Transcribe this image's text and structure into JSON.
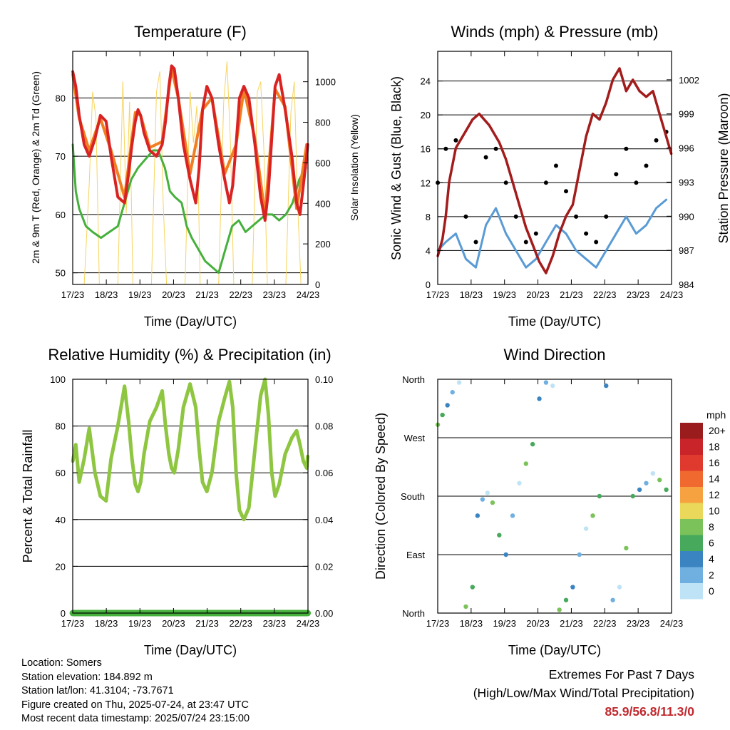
{
  "colors": {
    "temp_2m": "#d92323",
    "temp_9m": "#f07f22",
    "dewpoint": "#45b03c",
    "solar": "#f7d45c",
    "wind": "#5a9bd5",
    "gust": "#000000",
    "pressure": "#a31c1c",
    "rh": "#8ec641",
    "precip": "#45b03c",
    "extremes_value": "#c0282d"
  },
  "time_ticks": [
    "17/23",
    "18/23",
    "19/23",
    "20/23",
    "21/23",
    "22/23",
    "23/23",
    "24/23"
  ],
  "x_label": "Time (Day/UTC)",
  "charts": {
    "temperature": {
      "title": "Temperature (F)",
      "ylabel_left": "2m & 9m T (Red, Orange) & 2m Td (Green)",
      "ylabel_right": "Solar Insolation (Yellow)",
      "left_ticks": [
        "50",
        "60",
        "70",
        "80"
      ],
      "right_ticks": [
        "0",
        "200",
        "400",
        "600",
        "800",
        "1000"
      ]
    },
    "winds": {
      "title": "Winds (mph) & Pressure (mb)",
      "ylabel_left": "Sonic Wind & Gust (Blue, Black)",
      "ylabel_right": "Station Pressure (Maroon)",
      "left_ticks": [
        "0",
        "4",
        "8",
        "12",
        "16",
        "20",
        "24"
      ],
      "right_ticks": [
        "984",
        "987",
        "990",
        "993",
        "996",
        "999",
        "1002"
      ]
    },
    "humidity": {
      "title": "Relative Humidity (%) & Precipitation (in)",
      "ylabel_left": "Percent & Total Rainfall",
      "left_ticks": [
        "0",
        "20",
        "40",
        "60",
        "80",
        "100"
      ],
      "right_ticks": [
        "0.00",
        "0.02",
        "0.04",
        "0.06",
        "0.08",
        "0.10"
      ]
    },
    "direction": {
      "title": "Wind Direction",
      "ylabel_left": "Direction (Colored By Speed)",
      "left_ticks": [
        "North",
        "East",
        "South",
        "West",
        "North"
      ],
      "legend_title": "mph",
      "legend_labels": [
        "20+",
        "18",
        "16",
        "14",
        "12",
        "10",
        "8",
        "6",
        "4",
        "2",
        "0"
      ],
      "legend_colors": [
        "#9b1c1c",
        "#c8242a",
        "#e0392e",
        "#f06a2f",
        "#f7a241",
        "#ead85a",
        "#7cc25a",
        "#47a95b",
        "#3a84c1",
        "#6fb0e1",
        "#bfe3f6"
      ]
    }
  },
  "chart_data": [
    {
      "type": "line",
      "title": "Temperature (F)",
      "ylabel": "2m & 9m T (Red, Orange) & 2m Td (Green)",
      "y2label": "Solar Insolation (Yellow)",
      "x_range_days": [
        17.958,
        24.958
      ],
      "ylim": [
        48,
        88
      ],
      "y2lim": [
        0,
        1150
      ],
      "series": [
        {
          "name": "2m T",
          "axis": "left",
          "x": [
            17.96,
            18.05,
            18.15,
            18.3,
            18.45,
            18.62,
            18.78,
            18.95,
            19.1,
            19.3,
            19.5,
            19.62,
            19.72,
            19.82,
            19.9,
            19.98,
            20.08,
            20.25,
            20.45,
            20.62,
            20.72,
            20.82,
            20.9,
            20.98,
            21.1,
            21.25,
            21.45,
            21.62,
            21.72,
            21.82,
            21.95,
            22.1,
            22.3,
            22.48,
            22.62,
            22.72,
            22.82,
            22.92,
            23.05,
            23.2,
            23.38,
            23.55,
            23.68,
            23.78,
            23.88,
            23.98,
            24.1,
            24.28,
            24.48,
            24.62,
            24.72,
            24.82,
            24.92,
            24.95
          ],
          "y": [
            84.5,
            82,
            77,
            72,
            70,
            73,
            77,
            76,
            70,
            63,
            62,
            67,
            72,
            76,
            78,
            77,
            74,
            71,
            70,
            72,
            76,
            82,
            85.5,
            85,
            80,
            72,
            66,
            62,
            68,
            78,
            82,
            80,
            72,
            66,
            62,
            65,
            72,
            80,
            82,
            80,
            72,
            63,
            59,
            64,
            73,
            82,
            84,
            78,
            70,
            62,
            60,
            65,
            70,
            72
          ]
        },
        {
          "name": "9m T",
          "axis": "left",
          "x": [
            17.96,
            18.15,
            18.45,
            18.78,
            19.1,
            19.5,
            19.82,
            19.98,
            20.25,
            20.62,
            20.9,
            21.1,
            21.45,
            21.82,
            22.1,
            22.48,
            22.82,
            23.05,
            23.38,
            23.68,
            23.98,
            24.28,
            24.62,
            24.92
          ],
          "y": [
            84,
            76.5,
            71,
            76.5,
            71,
            63,
            77.5,
            77,
            71.5,
            72.5,
            85,
            80,
            67,
            78,
            80,
            67,
            72,
            81.5,
            73,
            60,
            81.5,
            78.5,
            61,
            72
          ]
        },
        {
          "name": "2m Td",
          "axis": "left",
          "x": [
            17.96,
            18.05,
            18.15,
            18.35,
            18.55,
            18.8,
            19.05,
            19.3,
            19.5,
            19.7,
            19.9,
            20.05,
            20.2,
            20.35,
            20.5,
            20.7,
            20.85,
            21.0,
            21.2,
            21.35,
            21.5,
            21.7,
            21.9,
            22.1,
            22.3,
            22.5,
            22.7,
            22.9,
            23.1,
            23.3,
            23.5,
            23.7,
            23.9,
            24.1,
            24.3,
            24.5,
            24.7,
            24.9
          ],
          "y": [
            72,
            64,
            61,
            58,
            57,
            56,
            57,
            58,
            62,
            66,
            68,
            69,
            70,
            71,
            71,
            68,
            64,
            63,
            62,
            58,
            56,
            54,
            52,
            51,
            50,
            54,
            58,
            59,
            57,
            58,
            59,
            60,
            60,
            59,
            60,
            62,
            66,
            68
          ]
        },
        {
          "name": "Solar Insolation",
          "axis": "right",
          "x": [
            18.3,
            18.45,
            18.55,
            18.65,
            18.75,
            19.3,
            19.45,
            19.55,
            19.65,
            19.75,
            20.3,
            20.45,
            20.55,
            20.65,
            20.75,
            21.3,
            21.45,
            21.55,
            21.65,
            21.75,
            22.3,
            22.45,
            22.55,
            22.65,
            22.75,
            23.3,
            23.45,
            23.55,
            23.65,
            23.75,
            24.3,
            24.45,
            24.55,
            24.65,
            24.75
          ],
          "y": [
            0,
            500,
            950,
            820,
            0,
            0,
            1000,
            350,
            900,
            0,
            0,
            950,
            1050,
            400,
            0,
            0,
            950,
            700,
            880,
            0,
            0,
            900,
            1100,
            700,
            0,
            0,
            950,
            1000,
            650,
            0,
            0,
            850,
            1000,
            400,
            0
          ]
        }
      ]
    },
    {
      "type": "scatter",
      "title": "Winds (mph) & Pressure (mb)",
      "ylabel": "Sonic Wind & Gust (Blue, Black)",
      "y2label": "Station Pressure (Maroon)",
      "x_range_days": [
        17.958,
        24.958
      ],
      "ylim": [
        0,
        27.5
      ],
      "y2lim": [
        984,
        1004.5
      ],
      "series": [
        {
          "name": "Sonic Wind",
          "axis": "left",
          "x": [
            17.96,
            18.2,
            18.5,
            18.8,
            19.1,
            19.4,
            19.7,
            20.0,
            20.3,
            20.6,
            20.9,
            21.2,
            21.5,
            21.8,
            22.1,
            22.4,
            22.7,
            23.0,
            23.3,
            23.6,
            23.9,
            24.2,
            24.5,
            24.8
          ],
          "y": [
            4,
            5,
            6,
            3,
            2,
            7,
            9,
            6,
            4,
            2,
            3,
            5,
            7,
            6,
            4,
            3,
            2,
            4,
            6,
            8,
            6,
            7,
            9,
            10
          ]
        },
        {
          "name": "Gust",
          "axis": "left",
          "x": [
            17.96,
            18.2,
            18.5,
            18.8,
            19.1,
            19.4,
            19.7,
            20.0,
            20.3,
            20.6,
            20.9,
            21.2,
            21.5,
            21.8,
            22.1,
            22.4,
            22.7,
            23.0,
            23.3,
            23.6,
            23.9,
            24.2,
            24.5,
            24.8
          ],
          "y": [
            12,
            16,
            17,
            8,
            5,
            15,
            16,
            12,
            8,
            5,
            6,
            12,
            14,
            11,
            8,
            6,
            5,
            8,
            13,
            16,
            12,
            14,
            17,
            18
          ]
        },
        {
          "name": "Station Pressure",
          "axis": "right",
          "x": [
            17.96,
            18.1,
            18.2,
            18.3,
            18.5,
            18.8,
            19.0,
            19.2,
            19.5,
            19.8,
            20.0,
            20.2,
            20.4,
            20.6,
            20.8,
            21.0,
            21.2,
            21.4,
            21.6,
            21.8,
            22.0,
            22.2,
            22.4,
            22.6,
            22.8,
            23.0,
            23.2,
            23.4,
            23.6,
            23.8,
            24.0,
            24.2,
            24.4,
            24.6,
            24.8,
            24.95
          ],
          "y": [
            986.5,
            988,
            990,
            993,
            996,
            997.5,
            998.5,
            999,
            998,
            996.5,
            995,
            993,
            991,
            989,
            987.5,
            986,
            985,
            986.5,
            988.5,
            990,
            991,
            994,
            997,
            999,
            998.5,
            1000,
            1002,
            1003,
            1001,
            1002,
            1001,
            1000.5,
            1001,
            999,
            997,
            995.5
          ]
        }
      ]
    },
    {
      "type": "line",
      "title": "Relative Humidity (%) & Precipitation (in)",
      "ylabel": "Percent & Total Rainfall",
      "x_range_days": [
        17.958,
        24.958
      ],
      "ylim": [
        0,
        100
      ],
      "y2lim": [
        0,
        0.1
      ],
      "series": [
        {
          "name": "Relative Humidity",
          "axis": "left",
          "x": [
            17.96,
            18.05,
            18.15,
            18.3,
            18.45,
            18.62,
            18.78,
            18.95,
            19.1,
            19.3,
            19.5,
            19.62,
            19.72,
            19.82,
            19.9,
            19.98,
            20.08,
            20.25,
            20.45,
            20.62,
            20.72,
            20.82,
            20.9,
            20.98,
            21.1,
            21.25,
            21.45,
            21.62,
            21.72,
            21.82,
            21.95,
            22.1,
            22.3,
            22.48,
            22.62,
            22.72,
            22.82,
            22.92,
            23.05,
            23.2,
            23.38,
            23.55,
            23.68,
            23.78,
            23.88,
            23.98,
            24.1,
            24.28,
            24.48,
            24.62,
            24.72,
            24.82,
            24.92,
            24.95
          ],
          "y": [
            65,
            72,
            56,
            66,
            79,
            60,
            50,
            48,
            66,
            80,
            97,
            82,
            66,
            55,
            52,
            56,
            68,
            82,
            88,
            95,
            80,
            68,
            62,
            60,
            70,
            88,
            98,
            88,
            70,
            56,
            52,
            60,
            82,
            92,
            99,
            88,
            60,
            44,
            40,
            45,
            70,
            93,
            100,
            85,
            60,
            50,
            55,
            68,
            75,
            78,
            72,
            65,
            62,
            67
          ]
        },
        {
          "name": "Total Precipitation",
          "axis": "right",
          "x": [
            17.96,
            24.95
          ],
          "y": [
            0,
            0
          ]
        }
      ]
    },
    {
      "type": "scatter",
      "title": "Wind Direction",
      "ylabel": "Direction (Colored By Speed)",
      "x_range_days": [
        17.958,
        24.958
      ],
      "y_categories": [
        "North",
        "East",
        "South",
        "West",
        "North"
      ],
      "ylim": [
        0,
        360
      ],
      "legend_title": "mph",
      "series": [
        {
          "name": "Direction",
          "x": [
            17.96,
            18.1,
            18.25,
            18.4,
            18.6,
            18.8,
            19.0,
            19.15,
            19.3,
            19.45,
            19.6,
            19.8,
            20.0,
            20.2,
            20.4,
            20.6,
            20.8,
            21.0,
            21.2,
            21.4,
            21.6,
            21.8,
            22.0,
            22.2,
            22.4,
            22.6,
            22.8,
            23.0,
            23.2,
            23.4,
            23.6,
            23.8,
            24.0,
            24.2,
            24.4,
            24.6,
            24.8
          ],
          "y": [
            290,
            305,
            320,
            340,
            355,
            10,
            40,
            150,
            175,
            185,
            170,
            120,
            90,
            150,
            200,
            230,
            260,
            330,
            355,
            350,
            5,
            20,
            40,
            90,
            130,
            150,
            180,
            350,
            20,
            40,
            100,
            180,
            190,
            200,
            215,
            205,
            190
          ]
        }
      ]
    }
  ],
  "station": {
    "location": "Location: Somers",
    "elevation": "Station elevation: 184.892 m",
    "latlon": "Station lat/lon: 41.3104; -73.7671",
    "created": "Figure created on Thu, 2025-07-24, at 23:47 UTC",
    "recent": "Most recent data timestamp: 2025/07/24 23:15:00"
  },
  "extremes": {
    "line1": "Extremes For Past 7 Days",
    "line2": "(High/Low/Max Wind/Total Precipitation)",
    "value": "85.9/56.8/11.3/0"
  }
}
